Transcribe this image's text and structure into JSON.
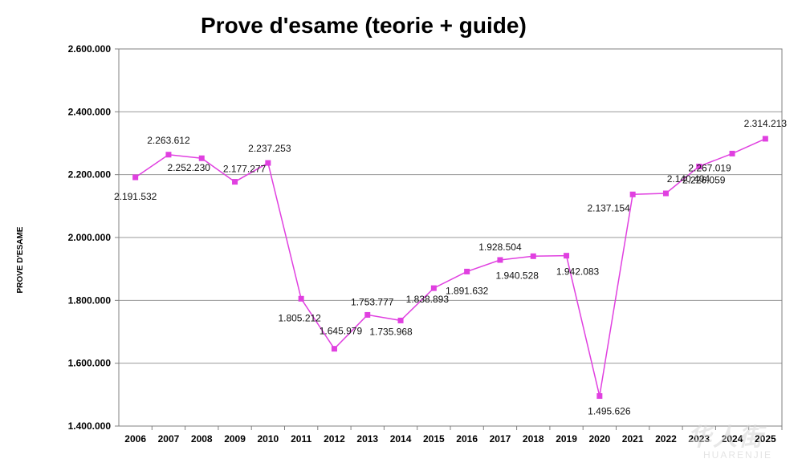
{
  "chart_data": {
    "type": "line",
    "title": "Prove d'esame (teorie + guide)",
    "xlabel": "",
    "ylabel": "PROVE D'ESAME",
    "ylim": [
      1400000,
      2600000
    ],
    "yticks": [
      1400000,
      1600000,
      1800000,
      2000000,
      2200000,
      2400000,
      2600000
    ],
    "ytick_labels": [
      "1.400.000",
      "1.600.000",
      "1.800.000",
      "2.000.000",
      "2.200.000",
      "2.400.000",
      "2.600.000"
    ],
    "grid": true,
    "series_color": "#e040e0",
    "categories": [
      "2006",
      "2007",
      "2008",
      "2009",
      "2010",
      "2011",
      "2012",
      "2013",
      "2014",
      "2015",
      "2016",
      "2017",
      "2018",
      "2019",
      "2020",
      "2021",
      "2022",
      "2023",
      "2024",
      "2025"
    ],
    "values": [
      2191532,
      2263612,
      2252230,
      2177277,
      2237253,
      1805212,
      1645979,
      1753777,
      1735968,
      1838893,
      1891632,
      1928504,
      1940528,
      1942083,
      1495626,
      2137154,
      2140404,
      2226059,
      2267019,
      2314213
    ],
    "data_labels": [
      "2.191.532",
      "2.263.612",
      "2.252.230",
      "2.177.277",
      "2.237.253",
      "1.805.212",
      "1.645.979",
      "1.753.777",
      "1.735.968",
      "1.838.893",
      "1.891.632",
      "1.928.504",
      "1.940.528",
      "1.942.083",
      "1.495.626",
      "2.137.154",
      "2.140.404",
      "2.226.059",
      "2.267.019",
      "2.314.213"
    ]
  },
  "watermark": {
    "glyphs": "华人街",
    "text": "HUARENJIE"
  }
}
